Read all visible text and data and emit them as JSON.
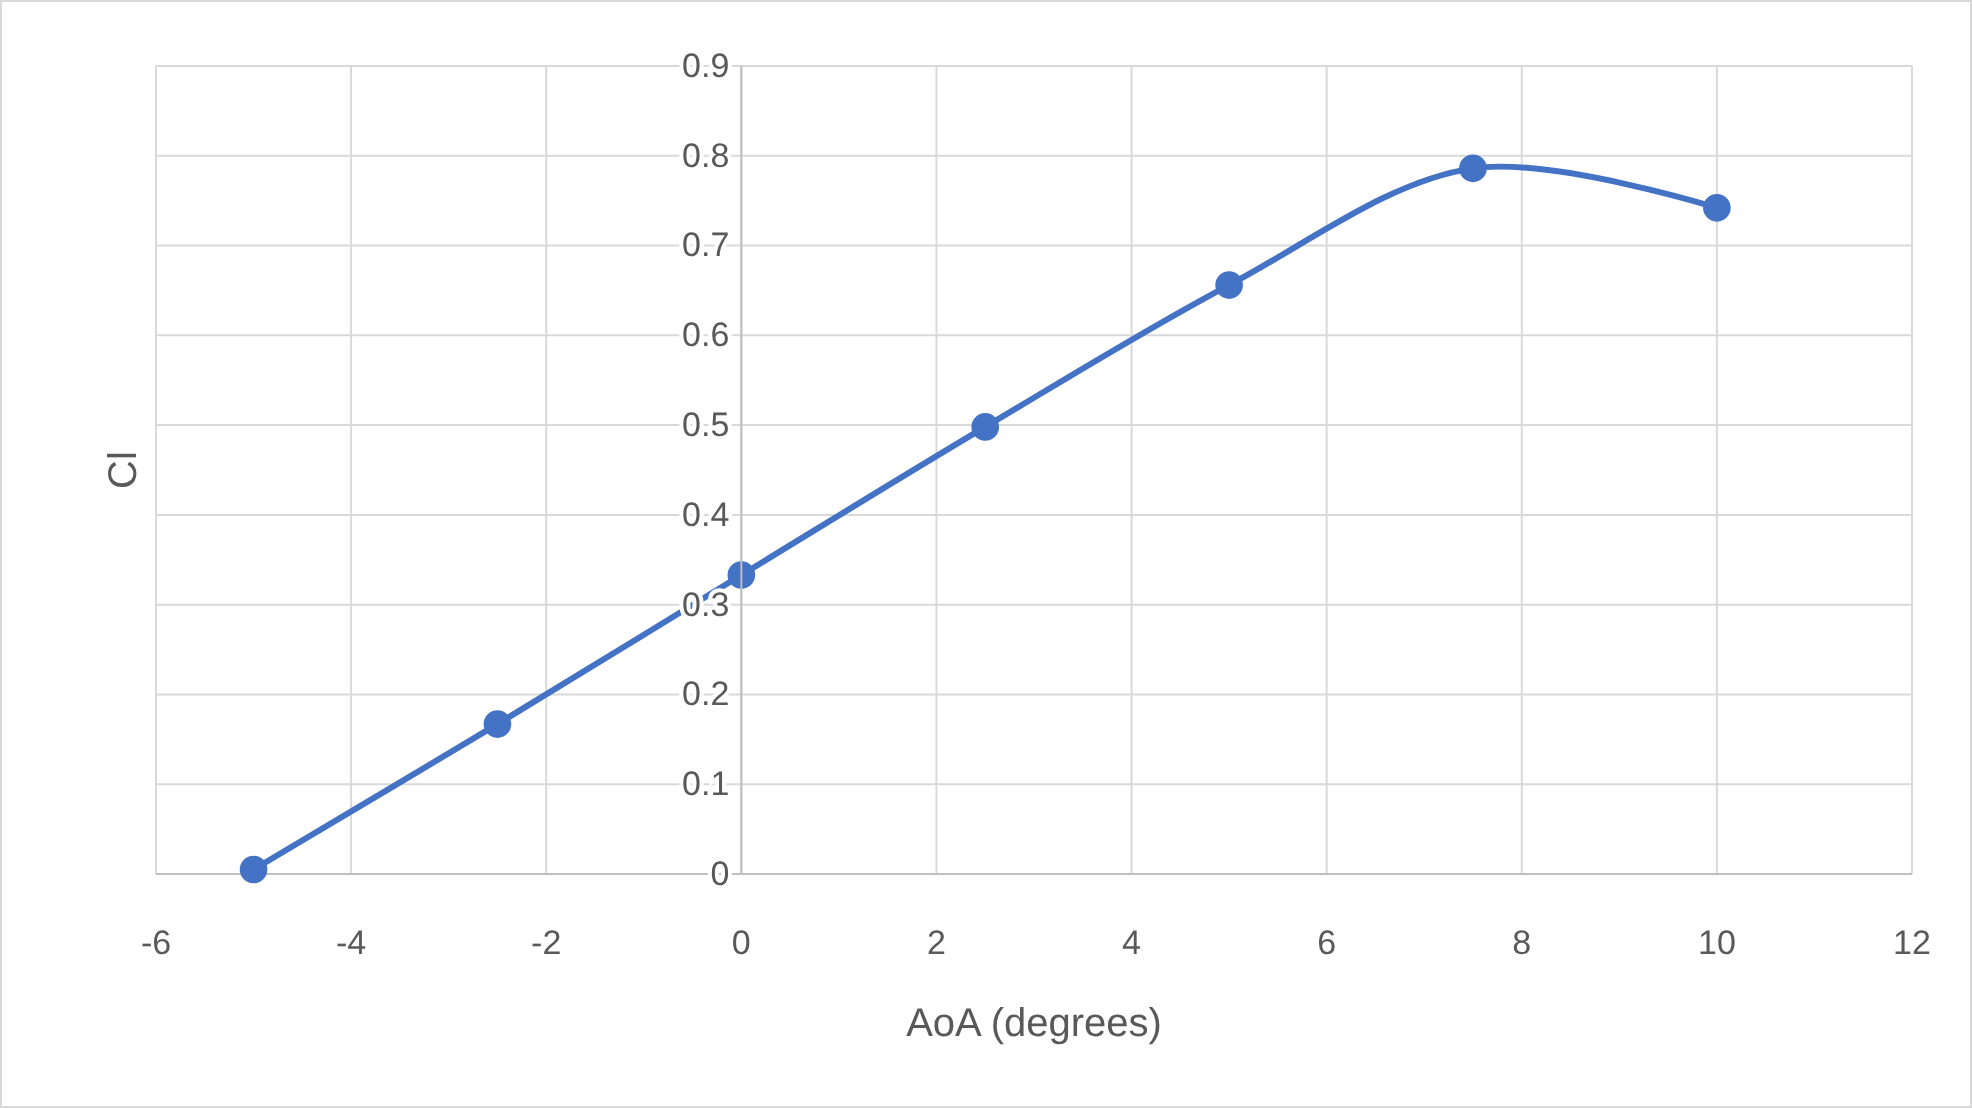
{
  "chart_data": {
    "type": "line",
    "xlabel": "AoA (degrees)",
    "ylabel": "Cl",
    "x": [
      -5,
      -2.5,
      0,
      2.5,
      5,
      7.5,
      10
    ],
    "series": [
      {
        "color": "#4472c4",
        "values": [
          0.005,
          0.167,
          0.333,
          0.498,
          0.656,
          0.786,
          0.742
        ]
      }
    ],
    "xlim": [
      -6,
      12
    ],
    "xticks": [
      -6,
      -4,
      -2,
      0,
      2,
      4,
      6,
      8,
      10,
      12
    ],
    "ylim": [
      0,
      0.9
    ],
    "yticks": [
      0,
      0.1,
      0.2,
      0.3,
      0.4,
      0.5,
      0.6,
      0.7,
      0.8,
      0.9
    ],
    "grid": true,
    "marker": "circle",
    "line_style": "solid"
  }
}
